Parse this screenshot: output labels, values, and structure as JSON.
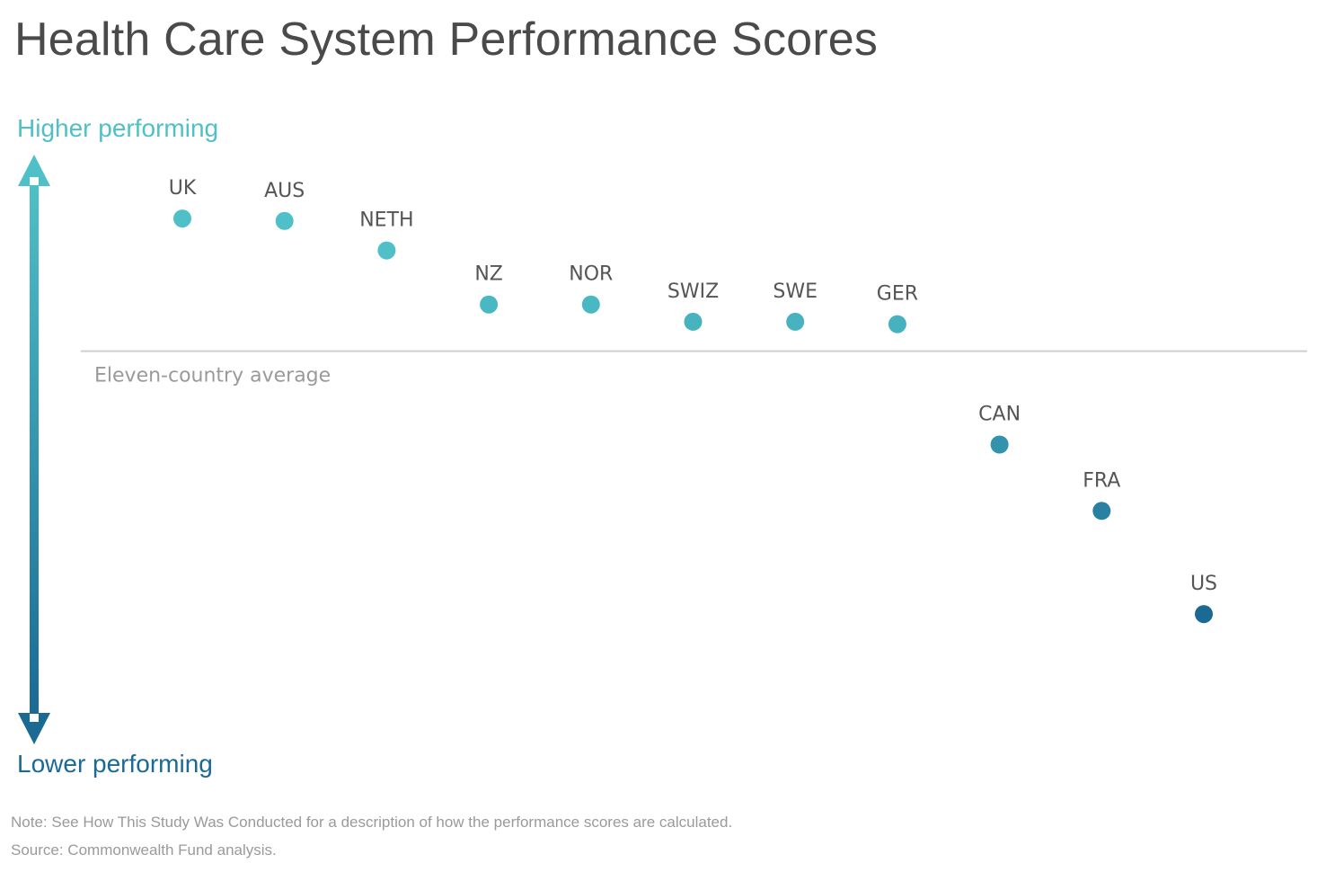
{
  "title": "Health Care System Performance Scores",
  "axis": {
    "top_label": "Higher performing",
    "bottom_label": "Lower performing",
    "top_color": "#4fc0c7",
    "bottom_color": "#1a6a94"
  },
  "notes": {
    "note": "Note: See How This Study Was Conducted for a description of how the performance scores are calculated.",
    "source": "Source: Commonwealth Fund analysis."
  },
  "chart_data": {
    "type": "scatter",
    "title": "Health Care System Performance Scores",
    "xlabel": "",
    "ylabel": "",
    "reference_line": {
      "label": "Eleven-country average",
      "value": 0
    },
    "categories": [
      "UK",
      "AUS",
      "NETH",
      "NZ",
      "NOR",
      "SWIZ",
      "SWE",
      "GER",
      "CAN",
      "FRA",
      "US"
    ],
    "values": [
      0.54,
      0.53,
      0.41,
      0.19,
      0.19,
      0.12,
      0.12,
      0.11,
      -0.38,
      -0.65,
      -1.07
    ],
    "ylim": [
      -1.6,
      0.8
    ],
    "grid": false,
    "colors": {
      "high": "#4fc0c7",
      "low": "#1a6a94",
      "line": "#cfcfcf",
      "label": "#555555",
      "avg_label": "#9a9a9a"
    }
  }
}
